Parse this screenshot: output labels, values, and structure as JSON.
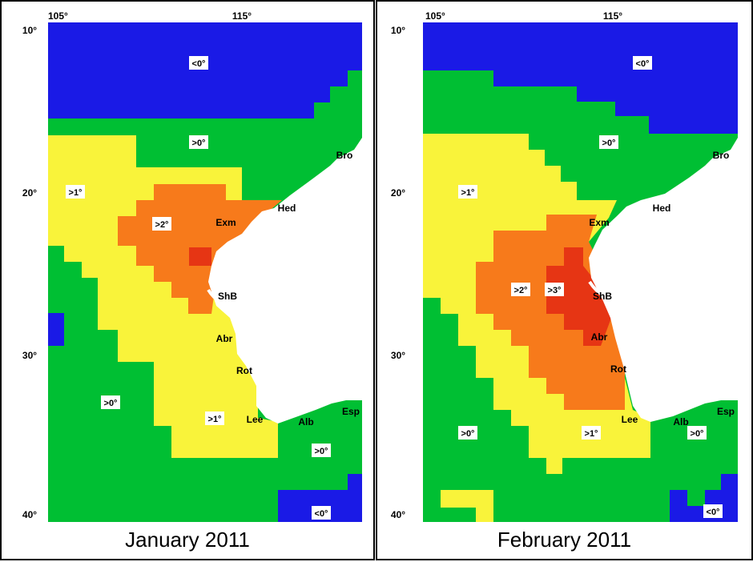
{
  "colors": {
    "below_0": "#1a1ae6",
    "above_0": "#00bf33",
    "above_1": "#f9f33a",
    "above_2": "#f77a1b",
    "above_3": "#e63514",
    "land": "#ffffff"
  },
  "legend_labels": [
    "<0°",
    ">0°",
    ">1°",
    ">2°",
    ">3°"
  ],
  "axes": {
    "lon_ticks": [
      "105°",
      "115°"
    ],
    "lat_ticks": [
      "10°",
      "20°",
      "30°",
      "40°"
    ]
  },
  "places": [
    "Bro",
    "Hed",
    "Exm",
    "ShB",
    "Abr",
    "Rot",
    "Lee",
    "Alb",
    "Esp"
  ],
  "panels": [
    {
      "caption": "January 2011",
      "zone_labels": [
        {
          "text": "<0°",
          "category": "below_0"
        },
        {
          "text": ">0°",
          "category": "above_0"
        },
        {
          "text": ">1°",
          "category": "above_1"
        },
        {
          "text": ">2°",
          "category": "above_2"
        },
        {
          "text": ">0°",
          "category": "above_0"
        },
        {
          "text": ">1°",
          "category": "above_1"
        },
        {
          "text": ">0°",
          "category": "above_0"
        },
        {
          "text": "<0°",
          "category": "below_0"
        }
      ]
    },
    {
      "caption": "February 2011",
      "zone_labels": [
        {
          "text": "<0°",
          "category": "below_0"
        },
        {
          "text": ">0°",
          "category": "above_0"
        },
        {
          "text": ">1°",
          "category": "above_1"
        },
        {
          "text": ">2°",
          "category": "above_2"
        },
        {
          "text": ">3°",
          "category": "above_3"
        },
        {
          "text": ">0°",
          "category": "above_0"
        },
        {
          "text": ">1°",
          "category": "above_1"
        },
        {
          "text": ">0°",
          "category": "above_0"
        },
        {
          "text": "<0°",
          "category": "below_0"
        }
      ]
    }
  ]
}
